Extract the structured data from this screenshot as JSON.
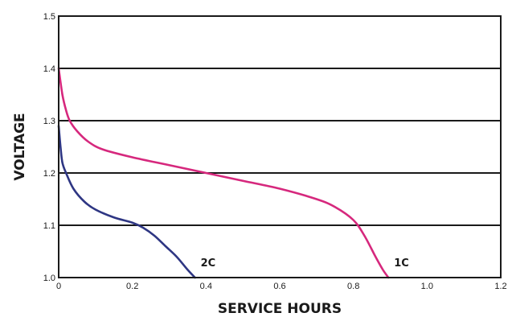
{
  "chart_data": {
    "type": "line",
    "xlabel": "SERVICE HOURS",
    "ylabel": "VOLTAGE",
    "xlim": [
      0,
      1.2
    ],
    "ylim": [
      1.0,
      1.5
    ],
    "x_ticks": [
      "0",
      "0.2",
      "0.4",
      "0.6",
      "0.8",
      "1.0",
      "1.2"
    ],
    "y_ticks": [
      "1.0",
      "1.1",
      "1.2",
      "1.3",
      "1.4",
      "1.5"
    ],
    "grid": "horizontal",
    "series": [
      {
        "name": "1C",
        "color": "#d6287d",
        "points": [
          [
            0.0,
            1.4
          ],
          [
            0.01,
            1.35
          ],
          [
            0.02,
            1.32
          ],
          [
            0.03,
            1.3
          ],
          [
            0.05,
            1.28
          ],
          [
            0.08,
            1.26
          ],
          [
            0.12,
            1.245
          ],
          [
            0.2,
            1.23
          ],
          [
            0.3,
            1.215
          ],
          [
            0.4,
            1.2
          ],
          [
            0.5,
            1.185
          ],
          [
            0.6,
            1.17
          ],
          [
            0.7,
            1.15
          ],
          [
            0.75,
            1.135
          ],
          [
            0.8,
            1.11
          ],
          [
            0.83,
            1.08
          ],
          [
            0.86,
            1.04
          ],
          [
            0.88,
            1.015
          ],
          [
            0.895,
            1.0
          ]
        ]
      },
      {
        "name": "2C",
        "color": "#2e3683",
        "points": [
          [
            0.0,
            1.29
          ],
          [
            0.005,
            1.25
          ],
          [
            0.01,
            1.22
          ],
          [
            0.02,
            1.2
          ],
          [
            0.04,
            1.17
          ],
          [
            0.07,
            1.145
          ],
          [
            0.1,
            1.13
          ],
          [
            0.15,
            1.115
          ],
          [
            0.2,
            1.105
          ],
          [
            0.23,
            1.095
          ],
          [
            0.26,
            1.08
          ],
          [
            0.29,
            1.06
          ],
          [
            0.32,
            1.04
          ],
          [
            0.35,
            1.015
          ],
          [
            0.37,
            1.0
          ]
        ]
      }
    ]
  }
}
